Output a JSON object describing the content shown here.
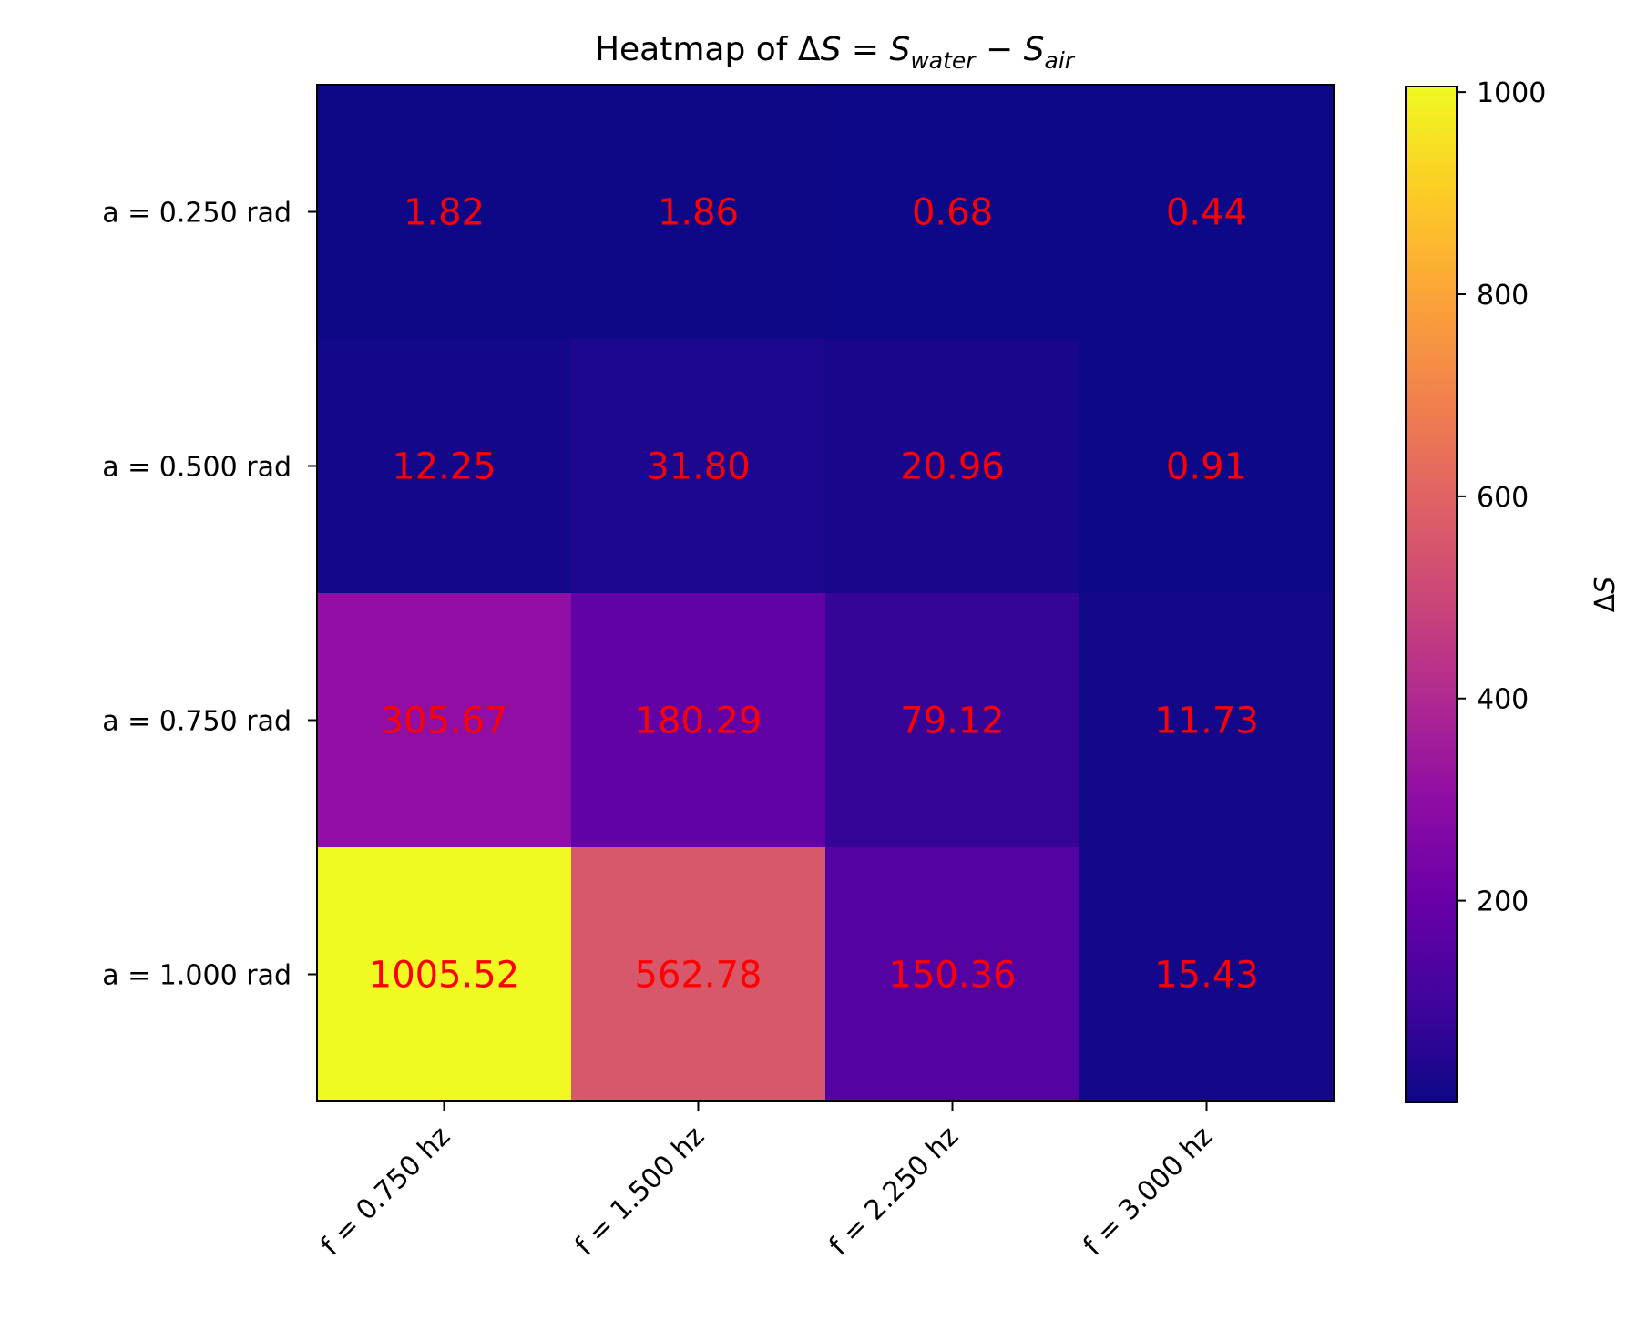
{
  "chart_data": {
    "type": "heatmap",
    "title": {
      "prefix": "Heatmap of ",
      "delta": "Δ",
      "lhs": "S",
      "eq": " = ",
      "term1": "S",
      "term1_sub": "water",
      "minus": " − ",
      "term2": "S",
      "term2_sub": "air"
    },
    "x_categories": [
      "f = 0.750 hz",
      "f = 1.500 hz",
      "f = 2.250 hz",
      "f = 3.000 hz"
    ],
    "y_categories": [
      "a = 0.250 rad",
      "a = 0.500 rad",
      "a = 0.750 rad",
      "a = 1.000 rad"
    ],
    "values": [
      [
        1.82,
        1.86,
        0.68,
        0.44
      ],
      [
        12.25,
        31.8,
        20.96,
        0.91
      ],
      [
        305.67,
        180.29,
        79.12,
        11.73
      ],
      [
        1005.52,
        562.78,
        150.36,
        15.43
      ]
    ],
    "cell_labels": [
      [
        "1.82",
        "1.86",
        "0.68",
        "0.44"
      ],
      [
        "12.25",
        "31.80",
        "20.96",
        "0.91"
      ],
      [
        "305.67",
        "180.29",
        "79.12",
        "11.73"
      ],
      [
        "1005.52",
        "562.78",
        "150.36",
        "15.43"
      ]
    ],
    "colormap": "plasma",
    "value_range": [
      0.44,
      1005.52
    ],
    "colorbar": {
      "label_delta": "Δ",
      "label_var": "S",
      "ticks": [
        200,
        400,
        600,
        800,
        1000
      ],
      "tick_labels": [
        "200",
        "400",
        "600",
        "800",
        "1000"
      ]
    },
    "annotation_color": "#ff0000"
  }
}
